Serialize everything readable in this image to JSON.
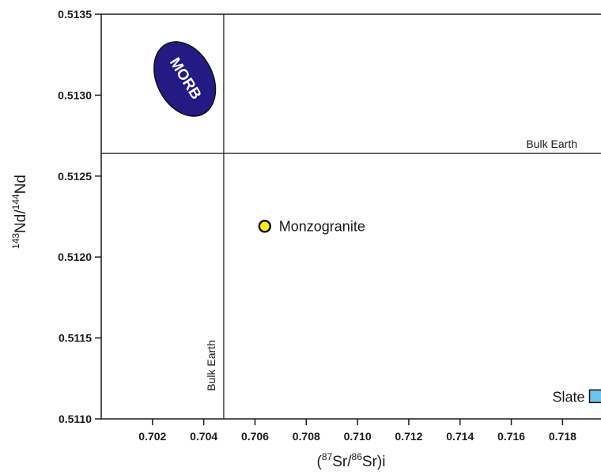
{
  "chart_data": {
    "type": "scatter",
    "x_axis": {
      "title_parts": [
        "(",
        "87",
        "Sr/",
        "86",
        "Sr)i"
      ],
      "range": [
        0.7,
        0.7195
      ],
      "ticks": [
        0.702,
        0.704,
        0.706,
        0.708,
        0.71,
        0.712,
        0.714,
        0.716,
        0.718
      ],
      "tick_labels": [
        "0.702",
        "0.704",
        "0.706",
        "0.708",
        "0.710",
        "0.712",
        "0.714",
        "0.716",
        "0.718"
      ]
    },
    "y_axis": {
      "title_parts": [
        "143",
        "Nd/",
        "144",
        "Nd"
      ],
      "range": [
        0.511,
        0.5135
      ],
      "ticks": [
        0.511,
        0.5115,
        0.512,
        0.5125,
        0.513,
        0.5135
      ],
      "tick_labels": [
        "0.5110",
        "0.5115",
        "0.5120",
        "0.5125",
        "0.5130",
        "0.5135"
      ]
    },
    "reference_lines": [
      {
        "orientation": "vertical",
        "value": 0.70478,
        "label": "Bulk Earth"
      },
      {
        "orientation": "horizontal",
        "value": 0.51264,
        "label": "Bulk Earth"
      }
    ],
    "field": {
      "label": "MORB",
      "center": [
        0.70326,
        0.5131
      ],
      "color": "#241a84"
    },
    "points": [
      {
        "label": "Monzogranite",
        "x": 0.70638,
        "y": 0.51219,
        "marker": "circle",
        "color": "#f5ec18"
      },
      {
        "label": "Slate",
        "x": 0.7193,
        "y": 0.51114,
        "marker": "square",
        "color": "#6ec3ea"
      }
    ]
  }
}
